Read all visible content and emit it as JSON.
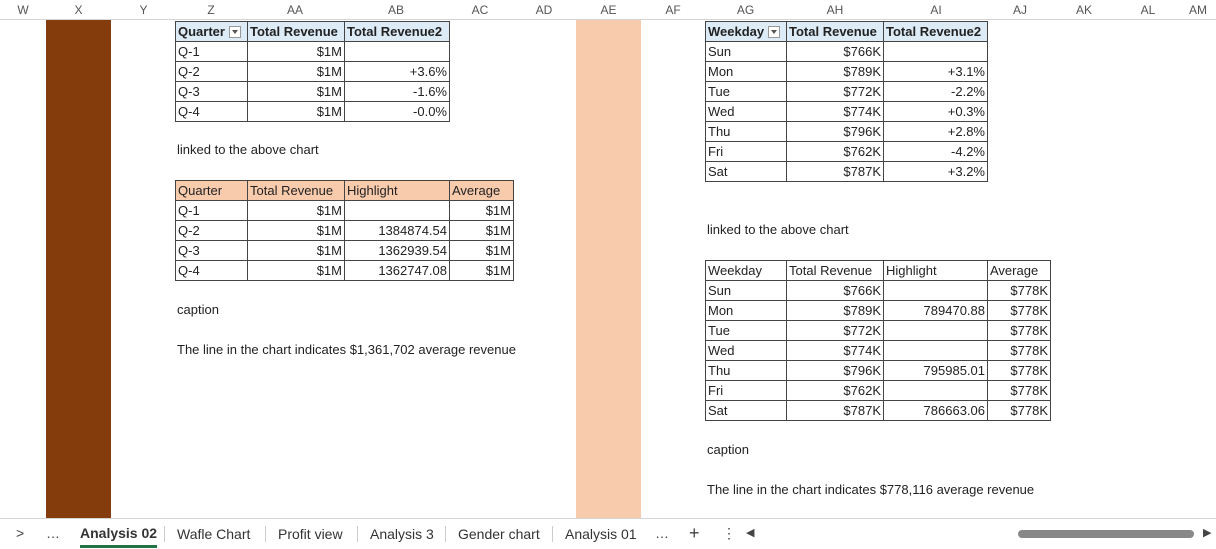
{
  "columns": [
    "W",
    "X",
    "Y",
    "Z",
    "AA",
    "AB",
    "AC",
    "AD",
    "AE",
    "AF",
    "AG",
    "AH",
    "AI",
    "AJ",
    "AK",
    "AL",
    "AM"
  ],
  "band_colors": {
    "dark_brown": "#843c0c",
    "peach": "#f8cbad"
  },
  "quarter_table": {
    "headers": [
      "Quarter",
      "Total Revenue",
      "Total Revenue2"
    ],
    "rows": [
      [
        "Q-1",
        "$1M",
        ""
      ],
      [
        "Q-2",
        "$1M",
        "+3.6%"
      ],
      [
        "Q-3",
        "$1M",
        "-1.6%"
      ],
      [
        "Q-4",
        "$1M",
        "-0.0%"
      ]
    ]
  },
  "left_linked_text": "linked to the above chart",
  "quarter_avg_table": {
    "headers": [
      "Quarter",
      "Total Revenue",
      "Highlight",
      "Average"
    ],
    "rows": [
      [
        "Q-1",
        "$1M",
        "",
        "$1M"
      ],
      [
        "Q-2",
        "$1M",
        "1384874.54",
        "$1M"
      ],
      [
        "Q-3",
        "$1M",
        "1362939.54",
        "$1M"
      ],
      [
        "Q-4",
        "$1M",
        "1362747.08",
        "$1M"
      ]
    ]
  },
  "left_caption_label": "caption",
  "left_caption": "The line in the chart indicates $1,361,702 average revenue",
  "weekday_table": {
    "headers": [
      "Weekday",
      "Total Revenue",
      "Total Revenue2"
    ],
    "rows": [
      [
        "Sun",
        "$766K",
        ""
      ],
      [
        "Mon",
        "$789K",
        "+3.1%"
      ],
      [
        "Tue",
        "$772K",
        "-2.2%"
      ],
      [
        "Wed",
        "$774K",
        "+0.3%"
      ],
      [
        "Thu",
        "$796K",
        "+2.8%"
      ],
      [
        "Fri",
        "$762K",
        "-4.2%"
      ],
      [
        "Sat",
        "$787K",
        "+3.2%"
      ]
    ]
  },
  "right_linked_text": "linked to the above chart",
  "weekday_avg_table": {
    "headers": [
      "Weekday",
      "Total Revenue",
      "Highlight",
      "Average"
    ],
    "rows": [
      [
        "Sun",
        "$766K",
        "",
        "$778K"
      ],
      [
        "Mon",
        "$789K",
        "789470.88",
        "$778K"
      ],
      [
        "Tue",
        "$772K",
        "",
        "$778K"
      ],
      [
        "Wed",
        "$774K",
        "",
        "$778K"
      ],
      [
        "Thu",
        "$796K",
        "795985.01",
        "$778K"
      ],
      [
        "Fri",
        "$762K",
        "",
        "$778K"
      ],
      [
        "Sat",
        "$787K",
        "786663.06",
        "$778K"
      ]
    ]
  },
  "right_caption_label": "caption",
  "right_caption": "The line in the chart indicates $778,116 average revenue",
  "tabbar": {
    "nav_arrow": ">",
    "more_left": "…",
    "tabs": [
      "Analysis 02",
      "Wafle Chart",
      "Profit view",
      "Analysis 3",
      "Gender chart",
      "Analysis 01"
    ],
    "active_tab": "Analysis 02",
    "more_right": "…",
    "add": "+",
    "options": "⋮",
    "scroll_left": "◀",
    "scroll_right": "▶"
  }
}
